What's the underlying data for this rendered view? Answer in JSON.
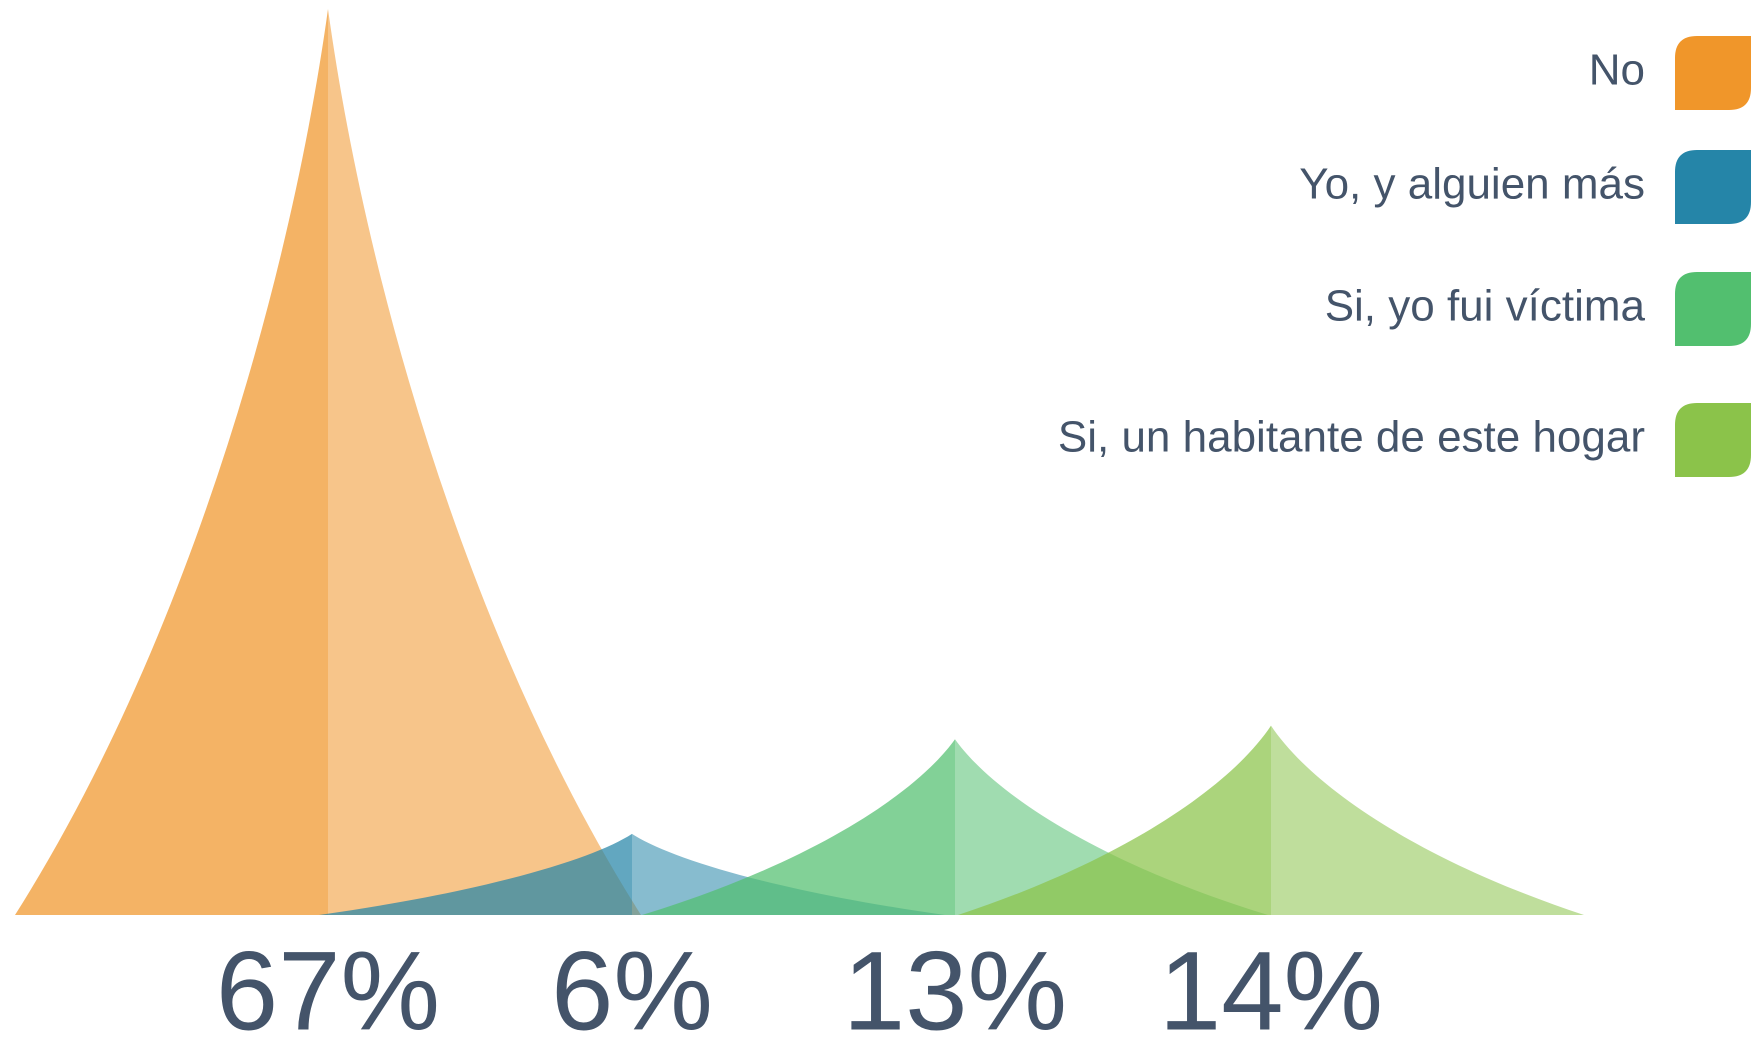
{
  "chart_data": {
    "type": "peak",
    "categories": [
      "No",
      "Yo, y alguien más",
      "Si, yo fui víctima",
      "Si, un habitante de este hogar"
    ],
    "values": [
      67,
      6,
      13,
      14
    ],
    "value_labels": [
      "67%",
      "6%",
      "13%",
      "14%"
    ],
    "colors": [
      "#f0962a",
      "#2585a8",
      "#52bf6f",
      "#8bc34a"
    ],
    "legend": "top-right"
  }
}
